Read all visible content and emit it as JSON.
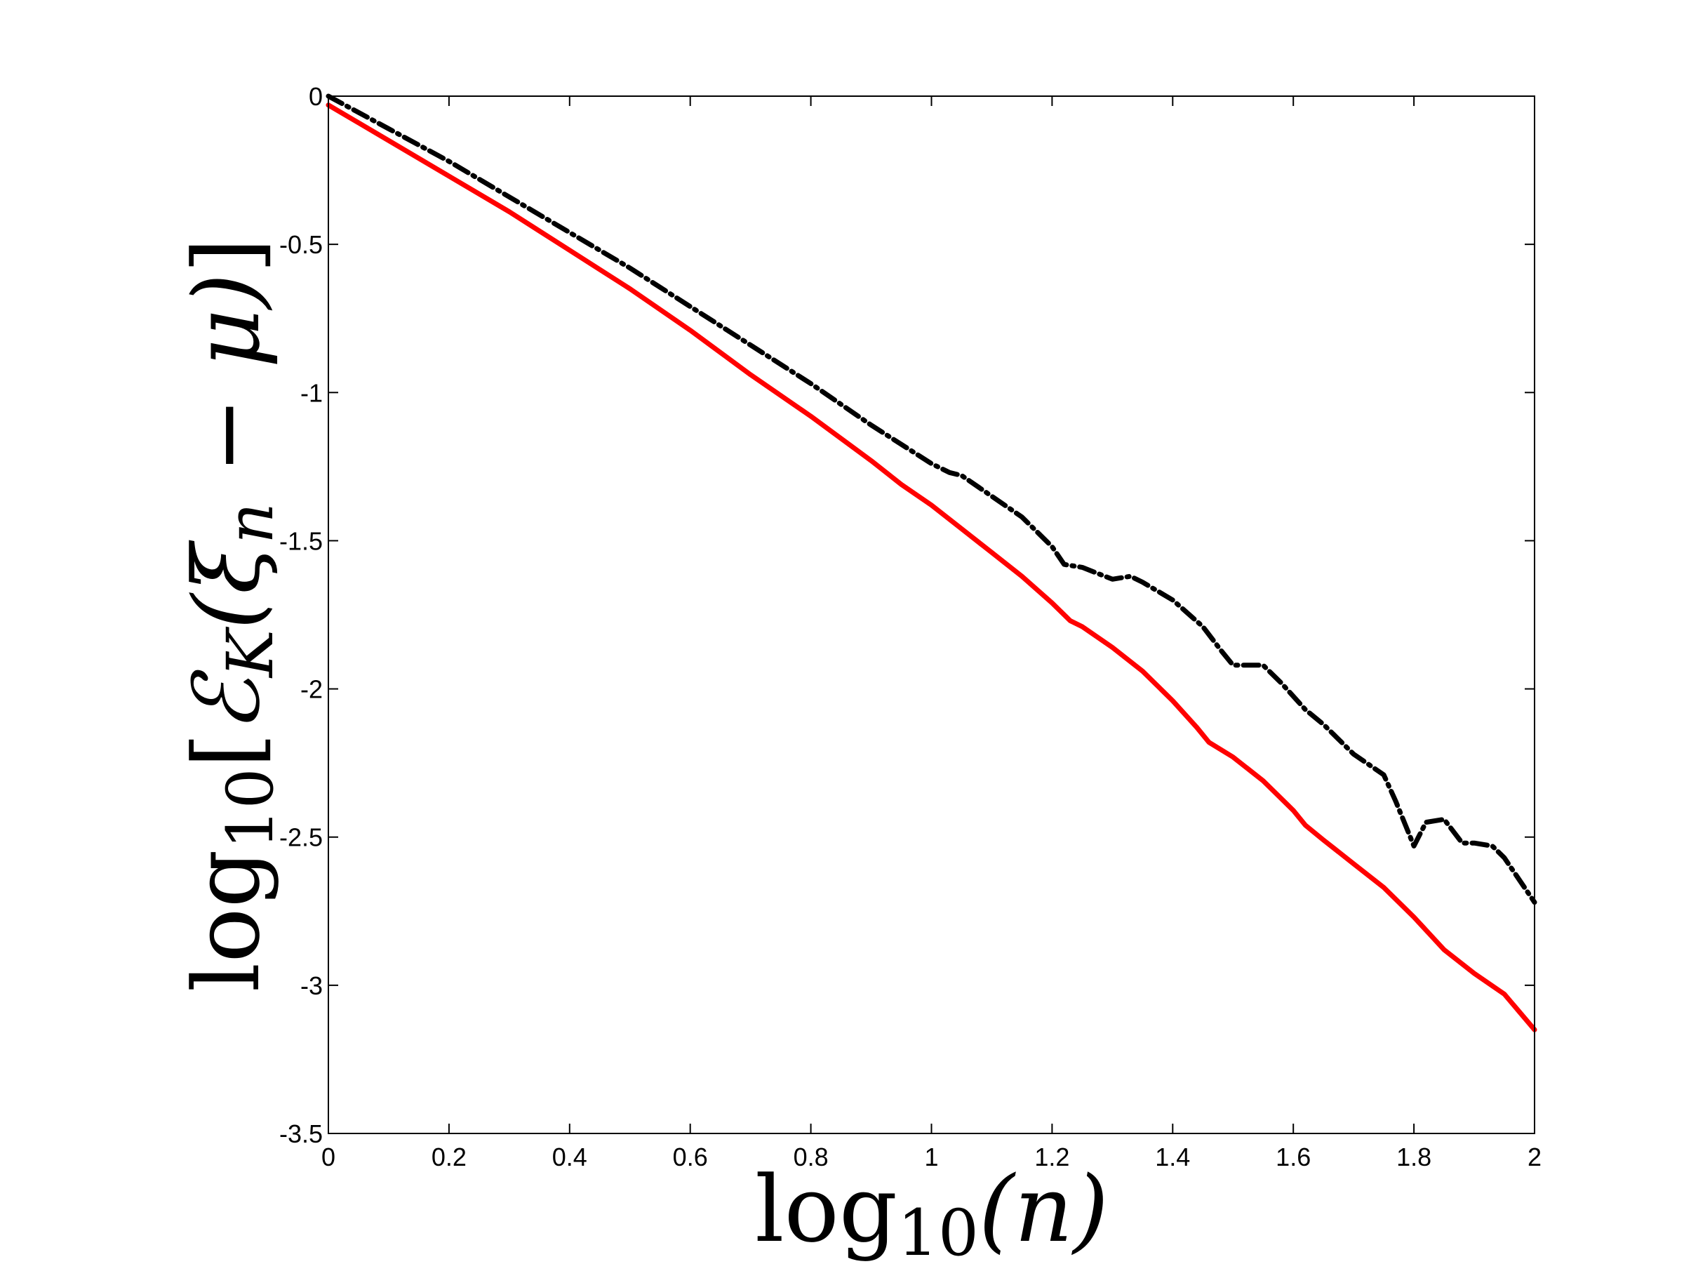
{
  "chart_data": {
    "type": "line",
    "xlabel": "log10(n)",
    "ylabel": "log10[ℰK(ξn − μ)]",
    "xlabel_parts": {
      "fn": "log",
      "sub": "10",
      "arg": "(n)"
    },
    "ylabel_parts": {
      "fn": "log",
      "sub": "10",
      "open": "[",
      "op": "ℰ",
      "op_sub": "K",
      "inner": "(ξ",
      "inner_sub": "n",
      "minus": " − μ)",
      "close": "]"
    },
    "xlim": [
      0,
      2
    ],
    "ylim": [
      -3.5,
      0
    ],
    "x_ticks": [
      "0",
      "0.2",
      "0.4",
      "0.6",
      "0.8",
      "1",
      "1.2",
      "1.4",
      "1.6",
      "1.8",
      "2"
    ],
    "y_ticks": [
      "0",
      "-0.5",
      "-1",
      "-1.5",
      "-2",
      "-2.5",
      "-3",
      "-3.5"
    ],
    "grid": false,
    "legend": false,
    "series": [
      {
        "color": "#ff0000",
        "style": "solid",
        "x": [
          0,
          0.1,
          0.2,
          0.3,
          0.4,
          0.5,
          0.6,
          0.7,
          0.8,
          0.9,
          0.95,
          1.0,
          1.05,
          1.1,
          1.15,
          1.2,
          1.23,
          1.25,
          1.3,
          1.35,
          1.4,
          1.44,
          1.46,
          1.5,
          1.55,
          1.6,
          1.62,
          1.65,
          1.7,
          1.75,
          1.8,
          1.85,
          1.9,
          1.95,
          2.0
        ],
        "y": [
          -0.03,
          -0.15,
          -0.27,
          -0.39,
          -0.52,
          -0.65,
          -0.79,
          -0.94,
          -1.08,
          -1.23,
          -1.31,
          -1.38,
          -1.46,
          -1.54,
          -1.62,
          -1.71,
          -1.77,
          -1.79,
          -1.86,
          -1.94,
          -2.04,
          -2.13,
          -2.18,
          -2.23,
          -2.31,
          -2.41,
          -2.46,
          -2.51,
          -2.59,
          -2.67,
          -2.77,
          -2.88,
          -2.96,
          -3.03,
          -3.15
        ]
      },
      {
        "color": "#000000",
        "style": "dashdot",
        "x": [
          0,
          0.1,
          0.2,
          0.3,
          0.4,
          0.5,
          0.6,
          0.7,
          0.8,
          0.9,
          1.0,
          1.03,
          1.05,
          1.1,
          1.15,
          1.2,
          1.22,
          1.25,
          1.3,
          1.33,
          1.35,
          1.4,
          1.45,
          1.48,
          1.5,
          1.55,
          1.58,
          1.62,
          1.65,
          1.7,
          1.75,
          1.77,
          1.8,
          1.82,
          1.85,
          1.88,
          1.9,
          1.93,
          1.95,
          2.0
        ],
        "y": [
          0.0,
          -0.11,
          -0.22,
          -0.34,
          -0.46,
          -0.58,
          -0.71,
          -0.84,
          -0.97,
          -1.11,
          -1.24,
          -1.27,
          -1.28,
          -1.35,
          -1.42,
          -1.52,
          -1.58,
          -1.59,
          -1.63,
          -1.62,
          -1.64,
          -1.7,
          -1.79,
          -1.87,
          -1.92,
          -1.92,
          -1.98,
          -2.07,
          -2.12,
          -2.22,
          -2.29,
          -2.38,
          -2.53,
          -2.45,
          -2.44,
          -2.52,
          -2.52,
          -2.53,
          -2.57,
          -2.72
        ]
      }
    ]
  }
}
